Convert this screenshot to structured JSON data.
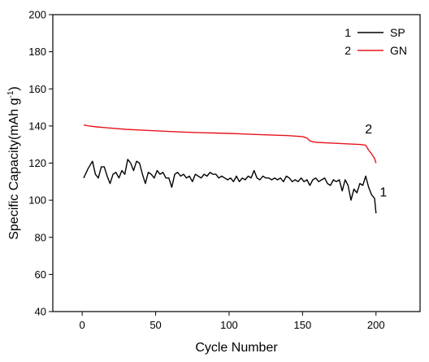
{
  "chart_data": {
    "type": "line",
    "title": "",
    "xlabel": "Cycle Number",
    "ylabel": "Specific Capacity(mAh g",
    "ylabel_sup": "-1",
    "ylabel_close": ")",
    "xlim": [
      -20,
      230
    ],
    "ylim": [
      40,
      200
    ],
    "xticks": [
      0,
      50,
      100,
      150,
      200
    ],
    "yticks": [
      40,
      60,
      80,
      100,
      120,
      140,
      160,
      180,
      200
    ],
    "grid": false,
    "legend_position": "top-right",
    "series": [
      {
        "name": "SP",
        "legend_number": "1",
        "color": "#000000",
        "curve_label": "1",
        "curve_label_at": [
          205,
          102
        ],
        "x": [
          1,
          4,
          7,
          9,
          11,
          13,
          15,
          17,
          19,
          21,
          23,
          25,
          27,
          29,
          31,
          33,
          35,
          37,
          39,
          41,
          43,
          45,
          47,
          49,
          51,
          53,
          55,
          57,
          59,
          61,
          63,
          65,
          67,
          69,
          71,
          73,
          75,
          77,
          79,
          81,
          83,
          85,
          87,
          89,
          91,
          93,
          95,
          97,
          99,
          101,
          103,
          105,
          107,
          109,
          111,
          113,
          115,
          117,
          119,
          121,
          123,
          125,
          127,
          129,
          131,
          133,
          135,
          137,
          139,
          141,
          143,
          145,
          147,
          149,
          151,
          153,
          155,
          157,
          159,
          161,
          163,
          165,
          167,
          169,
          171,
          173,
          175,
          177,
          179,
          181,
          183,
          185,
          187,
          189,
          191,
          193,
          195,
          197,
          199,
          200
        ],
        "y": [
          112,
          117,
          121,
          114,
          112,
          118,
          118,
          113,
          109,
          114,
          115,
          112,
          116,
          114,
          122,
          120,
          116,
          121,
          120,
          114,
          109,
          115,
          114,
          112,
          116,
          114,
          115,
          112,
          112,
          107,
          114,
          115,
          113,
          114,
          112,
          113,
          110,
          114,
          113,
          112,
          114,
          113,
          115,
          114,
          114,
          112,
          113,
          112,
          111,
          112,
          110,
          113,
          110,
          112,
          111,
          113,
          112,
          116,
          112,
          111,
          113,
          112,
          112,
          111,
          112,
          111,
          112,
          110,
          113,
          112,
          110,
          111,
          110,
          112,
          110,
          111,
          108,
          111,
          112,
          110,
          111,
          112,
          109,
          108,
          111,
          110,
          111,
          105,
          111,
          108,
          100,
          106,
          104,
          109,
          108,
          113,
          107,
          103,
          101,
          93
        ]
      },
      {
        "name": "GN",
        "legend_number": "2",
        "color": "#e8141c",
        "curve_label": "2",
        "curve_label_at": [
          195,
          136
        ],
        "x": [
          1,
          5,
          10,
          20,
          30,
          40,
          50,
          60,
          70,
          80,
          90,
          100,
          110,
          120,
          130,
          140,
          150,
          153,
          155,
          157,
          160,
          170,
          180,
          190,
          193,
          195,
          197,
          199,
          200
        ],
        "y": [
          140.5,
          140,
          139.5,
          138.8,
          138.2,
          137.8,
          137.4,
          137,
          136.7,
          136.4,
          136.2,
          136,
          135.7,
          135.4,
          135.1,
          134.8,
          134.3,
          133.5,
          132,
          131.5,
          131.2,
          130.8,
          130.4,
          130,
          129.6,
          127,
          125,
          122.5,
          120
        ]
      }
    ]
  }
}
